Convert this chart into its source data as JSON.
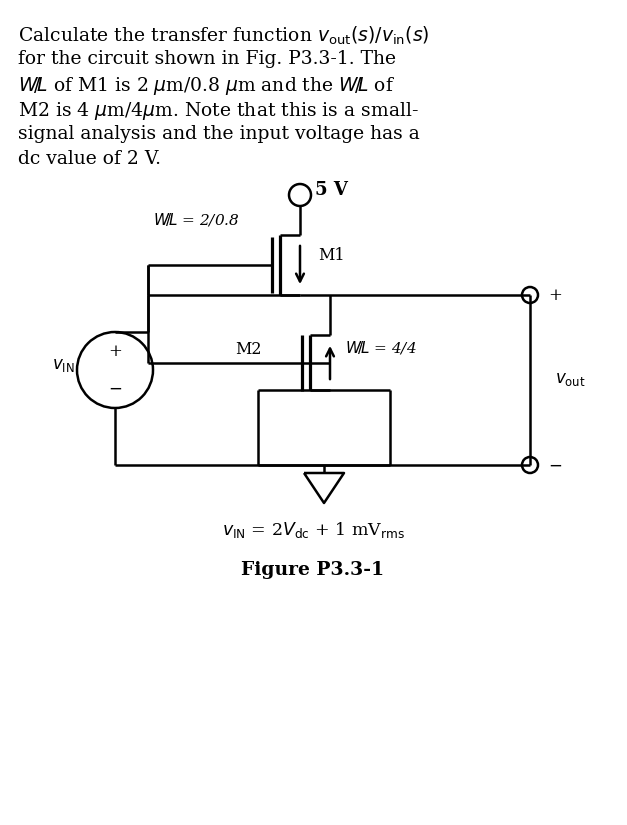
{
  "bg_color": "#ffffff",
  "lw": 1.8,
  "fig_label": "Figure P3.3-1",
  "vdd_label": "5 V",
  "m1_label": "M1",
  "m2_label": "M2",
  "wl1_label": "W/L = 2/0.8",
  "wl2_label": "W/L = 4/4",
  "vout_label": "v_out",
  "vin_label": "v_IN",
  "plus": "+",
  "minus": "-",
  "fontsize_body": 13.5,
  "fontsize_circuit": 11.5
}
